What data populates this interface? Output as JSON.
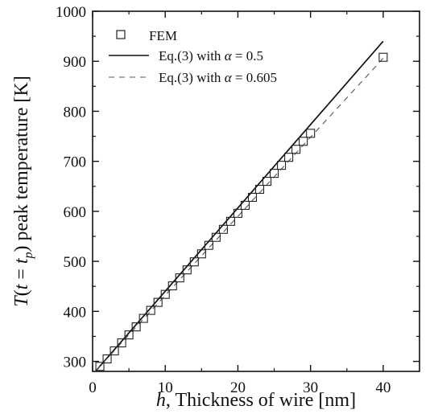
{
  "chart_data": {
    "type": "scatter",
    "xlabel": "h, Thickness of wire [nm]",
    "ylabel": "T(t = t_p) peak temperature [K]",
    "xlim": [
      0,
      45
    ],
    "ylim": [
      280,
      1000
    ],
    "x_ticks": [
      "0",
      "10",
      "20",
      "30",
      "40"
    ],
    "y_ticks": [
      "300",
      "400",
      "500",
      "600",
      "700",
      "800",
      "900",
      "1000"
    ],
    "x_tick_values": [
      0,
      10,
      20,
      30,
      40
    ],
    "y_tick_values": [
      300,
      400,
      500,
      600,
      700,
      800,
      900,
      1000
    ],
    "legend_position": "top-left",
    "grid": false,
    "series": [
      {
        "name": "FEM",
        "style": "open-square",
        "color": "#222222",
        "x": [
          1,
          2,
          3,
          4,
          5,
          6,
          7,
          8,
          9,
          10,
          11,
          12,
          13,
          14,
          15,
          16,
          17,
          18,
          19,
          20,
          21,
          22,
          23,
          24,
          25,
          26,
          27,
          28,
          29,
          30,
          40
        ],
        "y": [
          290,
          305,
          321,
          337,
          353,
          369,
          386,
          402,
          418,
          434,
          451,
          467,
          483,
          499,
          515,
          532,
          548,
          564,
          580,
          596,
          612,
          628,
          644,
          660,
          676,
          692,
          708,
          724,
          740,
          756,
          908
        ]
      },
      {
        "name": "Eq.(3) with α = 0.5",
        "legend_prefix": "Eq.(3) with ",
        "legend_symbol": "α",
        "legend_suffix": " = 0.5",
        "style": "solid",
        "color": "#111111",
        "x": [
          0.5,
          40
        ],
        "y": [
          282,
          940
        ]
      },
      {
        "name": "Eq.(3) with α = 0.605",
        "legend_prefix": "Eq.(3) with ",
        "legend_symbol": "α",
        "legend_suffix": " = 0.605",
        "style": "dashed",
        "color": "#555555",
        "x": [
          0.5,
          40
        ],
        "y": [
          282,
          906
        ]
      }
    ]
  }
}
